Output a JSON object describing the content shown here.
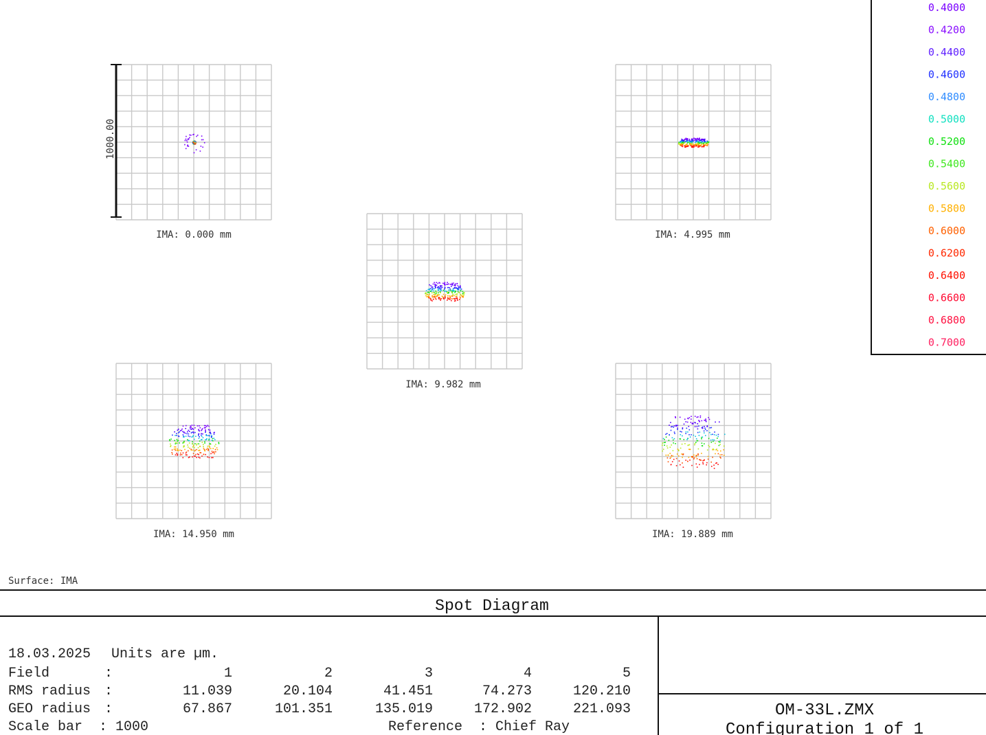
{
  "chart_data": {
    "type": "scatter",
    "title": "Spot Diagram",
    "surface_label": "Surface: IMA",
    "scale_bar_label": "1000.00",
    "legend": {
      "wavelengths": [
        "0.4000",
        "0.4200",
        "0.4400",
        "0.4600",
        "0.4800",
        "0.5000",
        "0.5200",
        "0.5400",
        "0.5600",
        "0.5800",
        "0.6000",
        "0.6200",
        "0.6400",
        "0.6600",
        "0.6800",
        "0.7000"
      ],
      "colors": [
        "#7a00ff",
        "#8a10ff",
        "#6020ff",
        "#2030ff",
        "#2f8cff",
        "#10e0c0",
        "#10e010",
        "#40e820",
        "#b8e820",
        "#ffb000",
        "#ff6000",
        "#ff2800",
        "#ff1000",
        "#ff0830",
        "#ff1040",
        "#ff2060"
      ]
    },
    "fields": [
      {
        "label": "IMA: 0.000 mm",
        "field": 1,
        "rms_radius": 11.039,
        "geo_radius": 67.867
      },
      {
        "label": "IMA: 4.995 mm",
        "field": 2,
        "rms_radius": 20.104,
        "geo_radius": 101.351
      },
      {
        "label": "IMA: 9.982 mm",
        "field": 3,
        "rms_radius": 41.451,
        "geo_radius": 135.019
      },
      {
        "label": "IMA: 14.950 mm",
        "field": 4,
        "rms_radius": 74.273,
        "geo_radius": 172.902
      },
      {
        "label": "IMA: 19.889 mm",
        "field": 5,
        "rms_radius": 120.21,
        "geo_radius": 221.093
      }
    ],
    "info": {
      "date": "18.03.2025",
      "units": "Units are µm.",
      "field_row_label": "Field",
      "rms_row_label": "RMS radius",
      "geo_row_label": "GEO radius",
      "scale_row": "Scale bar  : 1000",
      "reference": "Reference  : Chief Ray",
      "field_values": [
        "1",
        "2",
        "3",
        "4",
        "5"
      ],
      "rms_values": [
        "11.039",
        "20.104",
        "41.451",
        "74.273",
        "120.210"
      ],
      "geo_values": [
        "67.867",
        "101.351",
        "135.019",
        "172.902",
        "221.093"
      ]
    },
    "file_name": "OM-33L.ZMX",
    "configuration": "Configuration 1 of 1"
  }
}
